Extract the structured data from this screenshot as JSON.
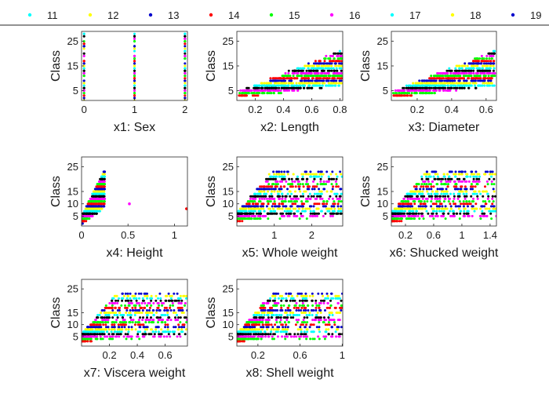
{
  "legend": {
    "entries": [
      "11",
      "12",
      "13",
      "14",
      "15",
      "16",
      "17",
      "18",
      "19"
    ],
    "colors": [
      "#00ffff",
      "#ffff00",
      "#0000cc",
      "#ff0000",
      "#00ff00",
      "#ff00ff",
      "#00ffff",
      "#ffff00",
      "#0000cc"
    ]
  },
  "class_palette": [
    "#00ffff",
    "#ffff00",
    "#0000cc",
    "#ff0000",
    "#00ff00",
    "#ff00ff",
    "#000000"
  ],
  "chart_data": [
    {
      "type": "scatter",
      "xlabel": "x1: Sex",
      "ylabel": "Class",
      "xlim": [
        -0.05,
        2.05
      ],
      "ylim": [
        1,
        29
      ],
      "xticks": [
        "0",
        "1",
        "2"
      ],
      "xtick_values": [
        0,
        1,
        2
      ],
      "yticks": [
        "5",
        "15",
        "25"
      ],
      "ytick_values": [
        5,
        15,
        25
      ],
      "x_categories": [
        0,
        1,
        2
      ],
      "y_range": [
        1,
        29
      ]
    },
    {
      "type": "scatter",
      "xlabel": "x2: Length",
      "ylabel": "Class",
      "xlim": [
        0.07,
        0.82
      ],
      "ylim": [
        1,
        29
      ],
      "xticks": [
        "0.2",
        "0.4",
        "0.6",
        "0.8"
      ],
      "xtick_values": [
        0.2,
        0.4,
        0.6,
        0.8
      ],
      "yticks": [
        "25",
        "15",
        "5"
      ],
      "ytick_values": [
        25,
        15,
        5
      ],
      "x_range": [
        0.075,
        0.815
      ],
      "y_range": [
        1,
        29
      ]
    },
    {
      "type": "scatter",
      "xlabel": "x3: Diameter",
      "ylabel": "Class",
      "xlim": [
        0.05,
        0.66
      ],
      "ylim": [
        1,
        29
      ],
      "xticks": [
        "0.2",
        "0.4",
        "0.6"
      ],
      "xtick_values": [
        0.2,
        0.4,
        0.6
      ],
      "yticks": [
        "25",
        "15",
        "5"
      ],
      "ytick_values": [
        25,
        15,
        5
      ],
      "x_range": [
        0.055,
        0.65
      ],
      "y_range": [
        1,
        29
      ]
    },
    {
      "type": "scatter",
      "xlabel": "x4: Height",
      "ylabel": "Class",
      "xlim": [
        0,
        1.14
      ],
      "ylim": [
        1,
        29
      ],
      "xticks": [
        "0",
        "0.5",
        "1"
      ],
      "xtick_values": [
        0,
        0.5,
        1
      ],
      "yticks": [
        "25",
        "15",
        "10",
        "5"
      ],
      "ytick_values": [
        25,
        15,
        10,
        5
      ],
      "x_range": [
        0,
        0.25
      ],
      "y_range": [
        1,
        29
      ],
      "outliers": [
        [
          0.515,
          10
        ],
        [
          1.13,
          8
        ]
      ]
    },
    {
      "type": "scatter",
      "xlabel": "x5: Whole weight",
      "ylabel": "Class",
      "xlim": [
        0,
        2.83
      ],
      "ylim": [
        1,
        29
      ],
      "xticks": [
        "1",
        "2"
      ],
      "xtick_values": [
        1,
        2
      ],
      "yticks": [
        "25",
        "15",
        "10",
        "5"
      ],
      "ytick_values": [
        25,
        15,
        10,
        5
      ],
      "x_range": [
        0.002,
        2.83
      ],
      "y_range": [
        1,
        29
      ]
    },
    {
      "type": "scatter",
      "xlabel": "x6: Shucked weight",
      "ylabel": "Class",
      "xlim": [
        0,
        1.49
      ],
      "ylim": [
        1,
        29
      ],
      "xticks": [
        "0.2",
        "0.6",
        "1",
        "1.4"
      ],
      "xtick_values": [
        0.2,
        0.6,
        1,
        1.4
      ],
      "yticks": [
        "25",
        "15",
        "10",
        "5"
      ],
      "ytick_values": [
        25,
        15,
        10,
        5
      ],
      "x_range": [
        0.001,
        1.49
      ],
      "y_range": [
        1,
        29
      ]
    },
    {
      "type": "scatter",
      "xlabel": "x7: Viscera weight",
      "ylabel": "Class",
      "xlim": [
        0,
        0.76
      ],
      "ylim": [
        1,
        29
      ],
      "xticks": [
        "0.2",
        "0.4",
        "0.6"
      ],
      "xtick_values": [
        0.2,
        0.4,
        0.6
      ],
      "yticks": [
        "25",
        "15",
        "10",
        "5"
      ],
      "ytick_values": [
        25,
        15,
        10,
        5
      ],
      "x_range": [
        0.0005,
        0.76
      ],
      "y_range": [
        1,
        29
      ]
    },
    {
      "type": "scatter",
      "xlabel": "x8: Shell weight",
      "ylabel": "Class",
      "xlim": [
        0,
        1.005
      ],
      "ylim": [
        1,
        29
      ],
      "xticks": [
        "0.2",
        "0.6",
        "1"
      ],
      "xtick_values": [
        0.2,
        0.6,
        1
      ],
      "yticks": [
        "25",
        "15",
        "10",
        "5"
      ],
      "ytick_values": [
        25,
        15,
        10,
        5
      ],
      "x_range": [
        0.0015,
        1.005
      ],
      "y_range": [
        1,
        29
      ]
    }
  ]
}
